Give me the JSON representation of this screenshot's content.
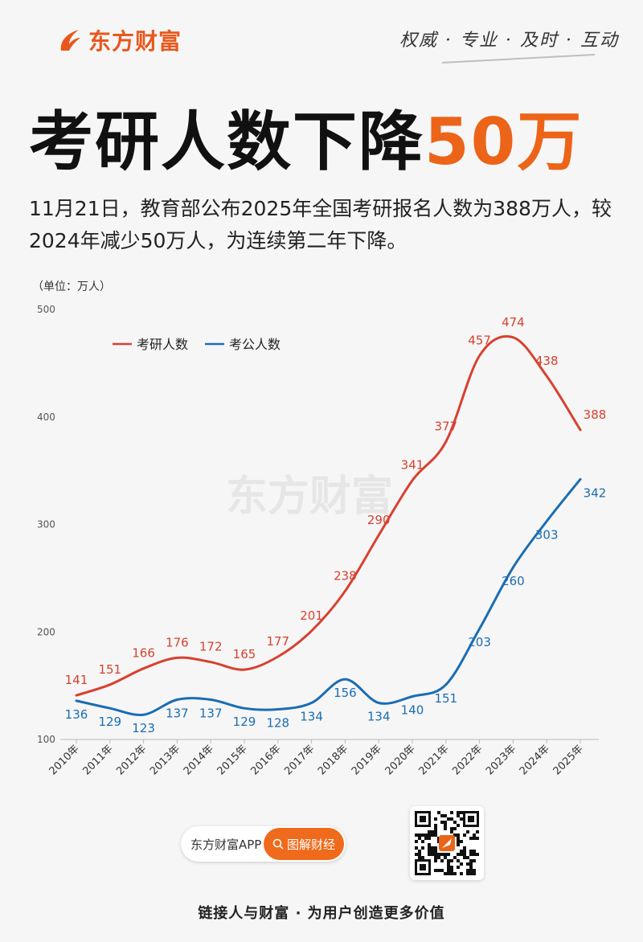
{
  "brand": {
    "name": "东方财富",
    "slogan": "权威 · 专业 · 及时 · 互动",
    "watermark": "东方财富"
  },
  "headline": {
    "main": "考研人数下降",
    "accent": "50万"
  },
  "intro": "11月21日，教育部公布2025年全国考研报名人数为388万人，较2024年减少50万人，为连续第二年下降。",
  "footer": {
    "app_label": "东方财富APP",
    "button_label": "图解财经",
    "tagline": "链接人与财富 · 为用户创造更多价值"
  },
  "colors": {
    "accent": "#ec6418",
    "series_red": "#d8412f",
    "series_blue": "#1a6db3"
  },
  "chart_data": {
    "type": "line",
    "unit_label": "（单位：万人）",
    "x": [
      "2010年",
      "2011年",
      "2012年",
      "2013年",
      "2014年",
      "2015年",
      "2016年",
      "2017年",
      "2018年",
      "2019年",
      "2020年",
      "2021年",
      "2022年",
      "2023年",
      "2024年",
      "2025年"
    ],
    "ylim": [
      100,
      500
    ],
    "yticks": [
      100,
      200,
      300,
      400,
      500
    ],
    "legend_position": "top-left",
    "series": [
      {
        "name": "考研人数",
        "color": "#d8412f",
        "values": [
          141,
          151,
          166,
          176,
          172,
          165,
          177,
          201,
          238,
          290,
          341,
          377,
          457,
          474,
          438,
          388
        ]
      },
      {
        "name": "考公人数",
        "color": "#1a6db3",
        "values": [
          136,
          129,
          123,
          137,
          137,
          129,
          128,
          134,
          156,
          134,
          140,
          151,
          203,
          260,
          303,
          342
        ]
      }
    ]
  }
}
